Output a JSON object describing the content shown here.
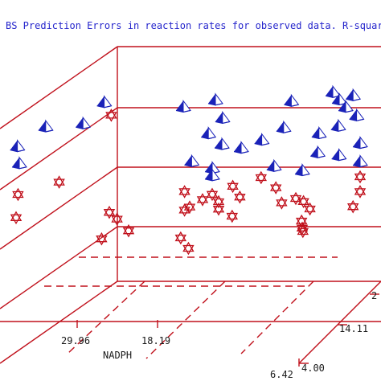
{
  "chart_data": {
    "type": "scatter",
    "title": "BS Prediction Errors in reaction rates for observed data. R-square=",
    "xlabel": "NADPH",
    "ylabel": "",
    "x_ticks": [
      "29.96",
      "18.19",
      "6.42"
    ],
    "y_ticks": [
      "4.00",
      "14.11",
      "2"
    ],
    "colors": {
      "frame": "#c0101b",
      "observed": "#1a22b8",
      "predicted": "#c0101b",
      "title": "#2626cc"
    },
    "series": [
      {
        "marker": "pyramid",
        "points": [
          [
            0.08,
            0.42,
            0.82
          ],
          [
            0.26,
            0.44,
            0.95
          ],
          [
            0.0,
            0.34,
            0.72
          ],
          [
            0.2,
            0.38,
            0.84
          ],
          [
            0.02,
            0.2,
            0.64
          ],
          [
            0.5,
            0.5,
            0.92
          ],
          [
            0.58,
            0.7,
            0.94
          ],
          [
            0.6,
            0.72,
            0.84
          ],
          [
            0.8,
            0.86,
            0.92
          ],
          [
            0.92,
            0.95,
            0.96
          ],
          [
            0.94,
            0.95,
            0.92
          ],
          [
            0.96,
            0.95,
            0.88
          ],
          [
            0.98,
            0.98,
            0.94
          ],
          [
            0.99,
            0.99,
            0.83
          ],
          [
            0.94,
            0.92,
            0.78
          ],
          [
            0.88,
            0.92,
            0.74
          ],
          [
            0.78,
            0.82,
            0.78
          ],
          [
            0.56,
            0.68,
            0.76
          ],
          [
            0.6,
            0.7,
            0.7
          ],
          [
            0.66,
            0.7,
            0.68
          ],
          [
            0.72,
            0.74,
            0.72
          ],
          [
            0.58,
            0.6,
            0.58
          ],
          [
            0.52,
            0.56,
            0.62
          ],
          [
            0.58,
            0.6,
            0.54
          ],
          [
            0.76,
            0.72,
            0.58
          ],
          [
            0.84,
            0.8,
            0.55
          ],
          [
            0.88,
            0.88,
            0.64
          ],
          [
            0.94,
            0.94,
            0.62
          ],
          [
            1.0,
            1.0,
            0.68
          ],
          [
            1.0,
            1.0,
            0.58
          ]
        ]
      },
      {
        "marker": "star",
        "points": [
          [
            0.28,
            0.46,
            0.88
          ],
          [
            0.12,
            0.44,
            0.52
          ],
          [
            0.0,
            0.36,
            0.46
          ],
          [
            0.0,
            0.3,
            0.34
          ],
          [
            0.28,
            0.4,
            0.36
          ],
          [
            0.3,
            0.44,
            0.32
          ],
          [
            0.34,
            0.4,
            0.26
          ],
          [
            0.26,
            0.36,
            0.22
          ],
          [
            0.5,
            0.54,
            0.46
          ],
          [
            0.58,
            0.6,
            0.44
          ],
          [
            0.64,
            0.64,
            0.48
          ],
          [
            0.72,
            0.72,
            0.52
          ],
          [
            0.76,
            0.78,
            0.46
          ],
          [
            0.66,
            0.66,
            0.42
          ],
          [
            0.6,
            0.6,
            0.4
          ],
          [
            0.56,
            0.5,
            0.42
          ],
          [
            0.52,
            0.5,
            0.38
          ],
          [
            0.5,
            0.54,
            0.36
          ],
          [
            0.6,
            0.6,
            0.36
          ],
          [
            0.64,
            0.62,
            0.32
          ],
          [
            0.78,
            0.76,
            0.38
          ],
          [
            0.82,
            0.8,
            0.4
          ],
          [
            0.84,
            0.84,
            0.38
          ],
          [
            0.86,
            0.84,
            0.34
          ],
          [
            0.84,
            0.78,
            0.28
          ],
          [
            0.84,
            0.8,
            0.24
          ],
          [
            0.84,
            0.82,
            0.22
          ],
          [
            1.0,
            1.0,
            0.5
          ],
          [
            1.0,
            1.0,
            0.42
          ],
          [
            0.98,
            0.98,
            0.34
          ],
          [
            0.52,
            0.46,
            0.16
          ],
          [
            0.5,
            0.42,
            0.22
          ]
        ]
      }
    ]
  }
}
